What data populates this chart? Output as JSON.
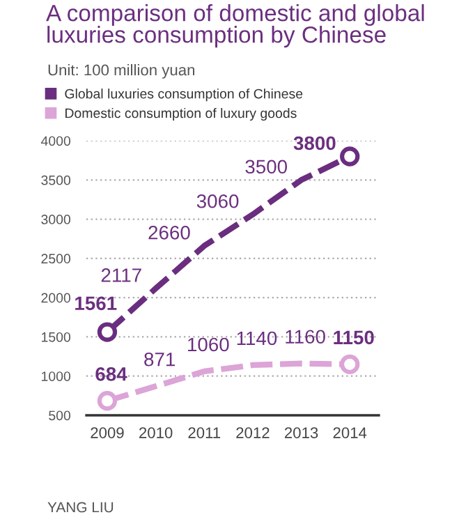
{
  "chart_data": {
    "type": "line",
    "title": "A comparison of domestic and global luxuries consumption by Chinese",
    "subtitle": "Unit: 100 million yuan",
    "categories": [
      "2009",
      "2010",
      "2011",
      "2012",
      "2013",
      "2014"
    ],
    "series": [
      {
        "name": "Global luxuries consumption of Chinese",
        "color": "#6a2d7f",
        "values": [
          1561,
          2117,
          2660,
          3060,
          3500,
          3800
        ]
      },
      {
        "name": "Domestic consumption of luxury goods",
        "color": "#dca4d7",
        "values": [
          684,
          871,
          1060,
          1140,
          1160,
          1150
        ]
      }
    ],
    "ylim": [
      500,
      4000
    ],
    "yticks": [
      500,
      1000,
      1500,
      2000,
      2500,
      3000,
      3500,
      4000
    ],
    "grid": "y",
    "legend": "top left",
    "line_style": "dashed",
    "data_labels": true,
    "annotations": [
      "YANG LIU"
    ]
  }
}
